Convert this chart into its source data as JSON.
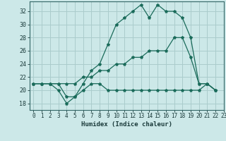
{
  "xlabel": "Humidex (Indice chaleur)",
  "background_color": "#cce8e8",
  "grid_color": "#aacccc",
  "line_color": "#1a6b5a",
  "xlim": [
    -0.5,
    23
  ],
  "ylim": [
    17,
    33.5
  ],
  "xticks": [
    0,
    1,
    2,
    3,
    4,
    5,
    6,
    7,
    8,
    9,
    10,
    11,
    12,
    13,
    14,
    15,
    16,
    17,
    18,
    19,
    20,
    21,
    22,
    23
  ],
  "yticks": [
    18,
    20,
    22,
    24,
    26,
    28,
    30,
    32
  ],
  "line1_x": [
    0,
    1,
    2,
    3,
    4,
    5,
    6,
    7,
    8,
    9,
    10,
    11,
    12,
    13,
    14,
    15,
    16,
    17,
    18,
    19,
    20,
    21,
    22
  ],
  "line1_y": [
    21,
    21,
    21,
    21,
    19,
    19,
    21,
    23,
    24,
    27,
    30,
    31,
    32,
    33,
    31,
    33,
    32,
    32,
    31,
    28,
    21,
    21,
    20
  ],
  "line2_x": [
    0,
    1,
    2,
    3,
    4,
    5,
    6,
    7,
    8,
    9,
    10,
    11,
    12,
    13,
    14,
    15,
    16,
    17,
    18,
    19,
    20,
    21,
    22
  ],
  "line2_y": [
    21,
    21,
    21,
    21,
    21,
    21,
    22,
    22,
    23,
    23,
    24,
    24,
    25,
    25,
    26,
    26,
    26,
    28,
    28,
    25,
    21,
    21,
    20
  ],
  "line3_x": [
    0,
    1,
    2,
    3,
    4,
    5,
    6,
    7,
    8,
    9,
    10,
    11,
    12,
    13,
    14,
    15,
    16,
    17,
    18,
    19,
    20,
    21,
    22
  ],
  "line3_y": [
    21,
    21,
    21,
    20,
    18,
    19,
    20,
    21,
    21,
    20,
    20,
    20,
    20,
    20,
    20,
    20,
    20,
    20,
    20,
    20,
    20,
    21,
    20
  ]
}
